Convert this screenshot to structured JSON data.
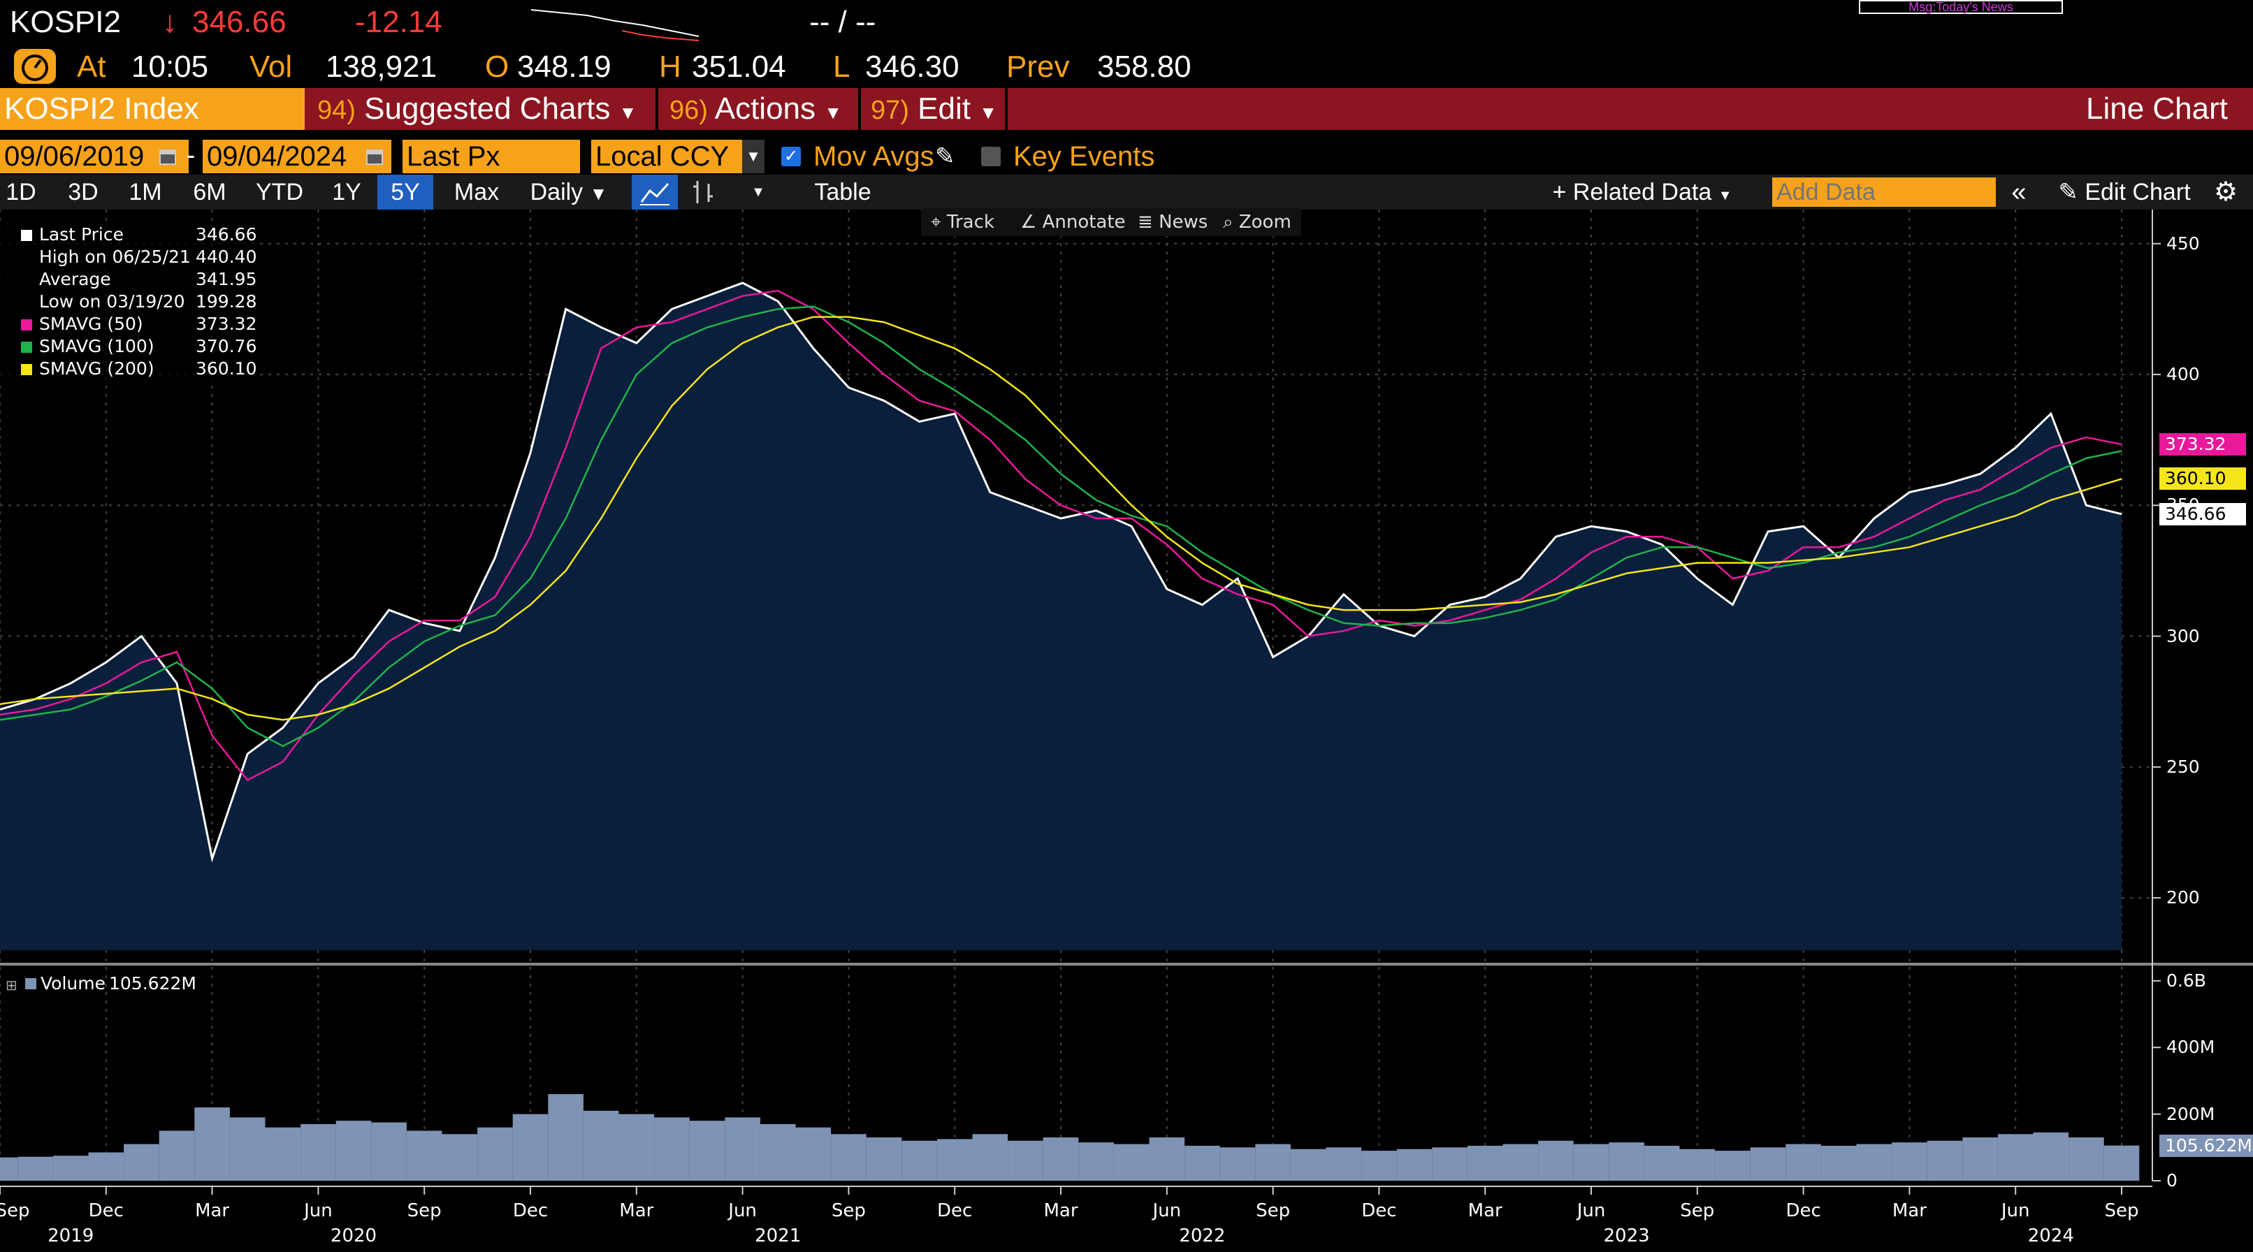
{
  "header": {
    "ticker": "KOSPI2",
    "arrow": "↓",
    "last": "346.66",
    "change": "-12.14",
    "right_mid": "-- / --",
    "news_label": "Msg:Today's News",
    "at_label": "At",
    "time": "10:05",
    "vol_label": "Vol",
    "vol": "138,921",
    "open_label": "O",
    "open": "348.19",
    "high_label": "H",
    "high": "351.04",
    "low_label": "L",
    "low": "346.30",
    "prev_label": "Prev",
    "prev": "358.80"
  },
  "menu": {
    "security": "KOSPI2 Index",
    "suggested_num": "94)",
    "suggested": "Suggested Charts",
    "actions_num": "96)",
    "actions": "Actions",
    "edit_num": "97)",
    "edit": "Edit",
    "title": "Line Chart"
  },
  "controls": {
    "date_from": "09/06/2019",
    "date_sep": "-",
    "date_to": "09/04/2024",
    "field": "Last Px",
    "currency": "Local CCY",
    "mov_avgs": "Mov Avgs",
    "key_events": "Key Events"
  },
  "toolbar": {
    "periods": [
      "1D",
      "3D",
      "1M",
      "6M",
      "YTD",
      "1Y",
      "5Y",
      "Max"
    ],
    "active_period": "5Y",
    "frequency": "Daily",
    "table": "Table",
    "related_data": "Related Data",
    "add_data_placeholder": "Add Data",
    "edit_chart": "Edit Chart"
  },
  "chart_tools": [
    "Track",
    "Annotate",
    "News",
    "Zoom"
  ],
  "legend": [
    {
      "label": "Last Price",
      "value": "346.66",
      "color": "#ffffff"
    },
    {
      "label": "High on 06/25/21",
      "value": "440.40",
      "color": "#ffffff"
    },
    {
      "label": "Average",
      "value": "341.95",
      "color": "#ffffff"
    },
    {
      "label": "Low on 03/19/20",
      "value": "199.28",
      "color": "#ffffff"
    },
    {
      "label": "SMAVG (50)",
      "value": "373.32",
      "color": "#e8199b"
    },
    {
      "label": "SMAVG (100)",
      "value": "370.76",
      "color": "#1fb34a"
    },
    {
      "label": "SMAVG (200)",
      "value": "360.10",
      "color": "#f5e51b"
    }
  ],
  "price_tags": [
    {
      "value": "373.32",
      "color": "#e8199b",
      "text_color": "#ffffff"
    },
    {
      "value": "360.10",
      "color": "#f5e51b",
      "text_color": "#000000"
    },
    {
      "value": "346.66",
      "color": "#ffffff",
      "text_color": "#000000"
    }
  ],
  "volume_legend": {
    "label": "Volume",
    "value": "105.622M"
  },
  "volume_tag": "105.622M",
  "colors": {
    "plot_bg": "#0a1f3c",
    "price": "#ffffff",
    "sma50": "#e8199b",
    "sma100": "#1fb34a",
    "sma200": "#f5e51b",
    "volume": "#7f93b5",
    "menu": "#8b1520",
    "accent": "#f7a21b"
  },
  "chart_data": [
    {
      "type": "line",
      "title": "",
      "xlabel": "",
      "ylabel": "",
      "ylim": [
        180,
        455
      ],
      "y_ticks": [
        200,
        250,
        300,
        350,
        400,
        450
      ],
      "x_ticks": [
        "Sep",
        "Dec",
        "Mar",
        "Jun",
        "Sep",
        "Dec",
        "Mar",
        "Jun",
        "Sep",
        "Dec",
        "Mar",
        "Jun",
        "Sep",
        "Dec",
        "Mar",
        "Jun",
        "Sep",
        "Dec",
        "Mar",
        "Jun",
        "Sep"
      ],
      "x_years": [
        "2019",
        "2020",
        "2021",
        "2022",
        "2023",
        "2024"
      ],
      "x": [
        "2019-09",
        "2019-10",
        "2019-11",
        "2019-12",
        "2020-01",
        "2020-02",
        "2020-03",
        "2020-04",
        "2020-05",
        "2020-06",
        "2020-07",
        "2020-08",
        "2020-09",
        "2020-10",
        "2020-11",
        "2020-12",
        "2021-01",
        "2021-02",
        "2021-03",
        "2021-04",
        "2021-05",
        "2021-06",
        "2021-07",
        "2021-08",
        "2021-09",
        "2021-10",
        "2021-11",
        "2021-12",
        "2022-01",
        "2022-02",
        "2022-03",
        "2022-04",
        "2022-05",
        "2022-06",
        "2022-07",
        "2022-08",
        "2022-09",
        "2022-10",
        "2022-11",
        "2022-12",
        "2023-01",
        "2023-02",
        "2023-03",
        "2023-04",
        "2023-05",
        "2023-06",
        "2023-07",
        "2023-08",
        "2023-09",
        "2023-10",
        "2023-11",
        "2023-12",
        "2024-01",
        "2024-02",
        "2024-03",
        "2024-04",
        "2024-05",
        "2024-06",
        "2024-07",
        "2024-08",
        "2024-09"
      ],
      "series": [
        {
          "name": "Last Price",
          "values": [
            272,
            276,
            282,
            290,
            300,
            282,
            215,
            255,
            265,
            282,
            292,
            310,
            305,
            302,
            330,
            370,
            425,
            418,
            412,
            425,
            430,
            435,
            428,
            410,
            395,
            390,
            382,
            385,
            355,
            350,
            345,
            348,
            342,
            318,
            312,
            322,
            292,
            300,
            316,
            304,
            300,
            312,
            315,
            322,
            338,
            342,
            340,
            335,
            322,
            312,
            340,
            342,
            330,
            345,
            355,
            358,
            362,
            372,
            385,
            350,
            346.66
          ]
        },
        {
          "name": "SMAVG (50)",
          "values": [
            270,
            272,
            276,
            282,
            290,
            294,
            262,
            245,
            252,
            270,
            285,
            298,
            306,
            306,
            315,
            338,
            372,
            410,
            418,
            420,
            425,
            430,
            432,
            425,
            412,
            400,
            390,
            386,
            375,
            360,
            350,
            345,
            345,
            335,
            322,
            316,
            312,
            300,
            302,
            306,
            304,
            306,
            310,
            314,
            322,
            332,
            338,
            338,
            334,
            322,
            325,
            334,
            334,
            338,
            345,
            352,
            356,
            364,
            372,
            376,
            373.32
          ]
        },
        {
          "name": "SMAVG (100)",
          "values": [
            268,
            270,
            272,
            277,
            283,
            290,
            280,
            265,
            258,
            265,
            275,
            288,
            298,
            304,
            308,
            322,
            345,
            375,
            400,
            412,
            418,
            422,
            425,
            426,
            420,
            412,
            402,
            394,
            385,
            375,
            362,
            352,
            346,
            342,
            332,
            324,
            316,
            310,
            305,
            304,
            305,
            305,
            307,
            310,
            314,
            322,
            330,
            334,
            334,
            330,
            326,
            328,
            332,
            334,
            338,
            344,
            350,
            355,
            362,
            368,
            370.76
          ]
        },
        {
          "name": "SMAVG (200)",
          "values": [
            274,
            276,
            277,
            278,
            279,
            280,
            276,
            270,
            268,
            270,
            274,
            280,
            288,
            296,
            302,
            312,
            325,
            345,
            368,
            388,
            402,
            412,
            418,
            422,
            422,
            420,
            415,
            410,
            402,
            392,
            378,
            364,
            350,
            338,
            328,
            320,
            316,
            312,
            310,
            310,
            310,
            311,
            312,
            313,
            316,
            320,
            324,
            326,
            328,
            328,
            328,
            329,
            330,
            332,
            334,
            338,
            342,
            346,
            352,
            356,
            360.1
          ]
        }
      ]
    },
    {
      "type": "bar",
      "title": "",
      "xlabel": "",
      "ylabel": "",
      "ylim": [
        0,
        650
      ],
      "y_ticks": [
        "0",
        "200M",
        "400M",
        "0.6B"
      ],
      "units": "M",
      "x": [
        "2019-09",
        "2019-10",
        "2019-11",
        "2019-12",
        "2020-01",
        "2020-02",
        "2020-03",
        "2020-04",
        "2020-05",
        "2020-06",
        "2020-07",
        "2020-08",
        "2020-09",
        "2020-10",
        "2020-11",
        "2020-12",
        "2021-01",
        "2021-02",
        "2021-03",
        "2021-04",
        "2021-05",
        "2021-06",
        "2021-07",
        "2021-08",
        "2021-09",
        "2021-10",
        "2021-11",
        "2021-12",
        "2022-01",
        "2022-02",
        "2022-03",
        "2022-04",
        "2022-05",
        "2022-06",
        "2022-07",
        "2022-08",
        "2022-09",
        "2022-10",
        "2022-11",
        "2022-12",
        "2023-01",
        "2023-02",
        "2023-03",
        "2023-04",
        "2023-05",
        "2023-06",
        "2023-07",
        "2023-08",
        "2023-09",
        "2023-10",
        "2023-11",
        "2023-12",
        "2024-01",
        "2024-02",
        "2024-03",
        "2024-04",
        "2024-05",
        "2024-06",
        "2024-07",
        "2024-08",
        "2024-09"
      ],
      "series": [
        {
          "name": "Volume",
          "values": [
            70,
            72,
            75,
            85,
            110,
            150,
            220,
            190,
            160,
            170,
            180,
            175,
            150,
            140,
            160,
            200,
            260,
            210,
            200,
            190,
            180,
            190,
            170,
            160,
            140,
            130,
            120,
            125,
            140,
            120,
            130,
            115,
            110,
            130,
            105,
            100,
            110,
            95,
            100,
            90,
            95,
            100,
            105,
            110,
            120,
            110,
            115,
            105,
            95,
            90,
            100,
            110,
            105,
            110,
            115,
            120,
            130,
            140,
            145,
            130,
            105.622
          ]
        }
      ]
    }
  ]
}
